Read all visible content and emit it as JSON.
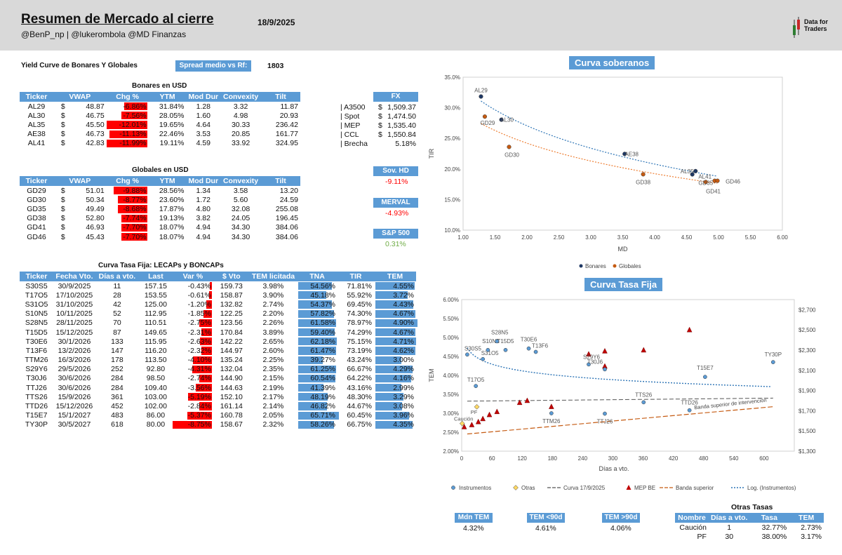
{
  "header": {
    "title": "Resumen de Mercado al cierre",
    "date": "18/9/2025",
    "subtitle": "@BenP_np | @lukerombola @MD Finanzas",
    "logo_line1": "Data for",
    "logo_line2": "Traders"
  },
  "yield_curve": {
    "label": "Yield Curve de Bonares Y Globales",
    "spread_label": "Spread medio vs Rf:",
    "spread_value": "1803"
  },
  "bonares": {
    "title": "Bonares en USD",
    "headers": [
      "Ticker",
      "VWAP",
      "Chg %",
      "YTM",
      "Mod Dur",
      "Convexity",
      "Tilt"
    ],
    "rows": [
      {
        "ticker": "AL29",
        "cur": "$",
        "vwap": "48.87",
        "chg": "-6.86%",
        "chg_v": -6.86,
        "ytm": "31.84%",
        "dur": "1.28",
        "conv": "3.32",
        "tilt": "11.87"
      },
      {
        "ticker": "AL30",
        "cur": "$",
        "vwap": "46.75",
        "chg": "-7.56%",
        "chg_v": -7.56,
        "ytm": "28.05%",
        "dur": "1.60",
        "conv": "4.98",
        "tilt": "20.93"
      },
      {
        "ticker": "AL35",
        "cur": "$",
        "vwap": "45.50",
        "chg": "-12.01%",
        "chg_v": -12.01,
        "ytm": "19.65%",
        "dur": "4.64",
        "conv": "30.33",
        "tilt": "236.42"
      },
      {
        "ticker": "AE38",
        "cur": "$",
        "vwap": "46.73",
        "chg": "-11.13%",
        "chg_v": -11.13,
        "ytm": "22.46%",
        "dur": "3.53",
        "conv": "20.85",
        "tilt": "161.77"
      },
      {
        "ticker": "AL41",
        "cur": "$",
        "vwap": "42.83",
        "chg": "-11.99%",
        "chg_v": -11.99,
        "ytm": "19.11%",
        "dur": "4.59",
        "conv": "33.92",
        "tilt": "324.95"
      }
    ]
  },
  "fx": {
    "title": "FX",
    "rows": [
      {
        "name": "| A3500",
        "cur": "$",
        "value": "1,509.37"
      },
      {
        "name": "| Spot",
        "cur": "$",
        "value": "1,474.50"
      },
      {
        "name": "| MEP",
        "cur": "$",
        "value": "1,535.40"
      },
      {
        "name": "| CCL",
        "cur": "$",
        "value": "1,550.84"
      },
      {
        "name": "| Brecha",
        "cur": "",
        "value": "5.18%"
      }
    ]
  },
  "globales": {
    "title": "Globales en USD",
    "headers": [
      "Ticker",
      "VWAP",
      "Chg %",
      "YTM",
      "Mod Dur",
      "Convexity",
      "Tilt"
    ],
    "rows": [
      {
        "ticker": "GD29",
        "cur": "$",
        "vwap": "51.01",
        "chg": "-9.88%",
        "chg_v": -9.88,
        "ytm": "28.56%",
        "dur": "1.34",
        "conv": "3.58",
        "tilt": "13.20"
      },
      {
        "ticker": "GD30",
        "cur": "$",
        "vwap": "50.34",
        "chg": "-8.77%",
        "chg_v": -8.77,
        "ytm": "23.60%",
        "dur": "1.72",
        "conv": "5.60",
        "tilt": "24.59"
      },
      {
        "ticker": "GD35",
        "cur": "$",
        "vwap": "49.49",
        "chg": "-8.68%",
        "chg_v": -8.68,
        "ytm": "17.87%",
        "dur": "4.80",
        "conv": "32.08",
        "tilt": "255.08"
      },
      {
        "ticker": "GD38",
        "cur": "$",
        "vwap": "52.80",
        "chg": "-7.74%",
        "chg_v": -7.74,
        "ytm": "19.13%",
        "dur": "3.82",
        "conv": "24.05",
        "tilt": "196.45"
      },
      {
        "ticker": "GD41",
        "cur": "$",
        "vwap": "46.93",
        "chg": "-7.70%",
        "chg_v": -7.7,
        "ytm": "18.07%",
        "dur": "4.94",
        "conv": "34.30",
        "tilt": "384.06"
      },
      {
        "ticker": "GD46",
        "cur": "$",
        "vwap": "45.43",
        "chg": "-7.70%",
        "chg_v": -7.7,
        "ytm": "18.07%",
        "dur": "4.94",
        "conv": "34.30",
        "tilt": "384.06"
      }
    ]
  },
  "indices": [
    {
      "name": "Sov. HD",
      "value": "-9.11%",
      "sign": "neg"
    },
    {
      "name": "MERVAL",
      "value": "-4.93%",
      "sign": "neg"
    },
    {
      "name": "S&P 500",
      "value": "0.31%",
      "sign": "pos"
    }
  ],
  "tasa_fija": {
    "title": "Curva Tasa Fija: LECAPs y BONCAPs",
    "headers": [
      "Ticker",
      "Fecha Vto.",
      "Días a vto.",
      "Last",
      "Var %",
      "$ Vto",
      "TEM licitada",
      "TNA",
      "TIR",
      "TEM"
    ],
    "rows": [
      {
        "ticker": "S30S5",
        "fecha": "30/9/2025",
        "dias": "11",
        "last": "157.15",
        "var": "-0.43%",
        "var_v": -0.43,
        "vto": "159.73",
        "teml": "3.98%",
        "tna": "54.56%",
        "tna_v": 54.56,
        "tir": "71.81%",
        "tem": "4.55%",
        "tem_v": 4.55
      },
      {
        "ticker": "T17O5",
        "fecha": "17/10/2025",
        "dias": "28",
        "last": "153.55",
        "var": "-0.61%",
        "var_v": -0.61,
        "vto": "158.87",
        "teml": "3.90%",
        "tna": "45.18%",
        "tna_v": 45.18,
        "tir": "55.92%",
        "tem": "3.72%",
        "tem_v": 3.72
      },
      {
        "ticker": "S31O5",
        "fecha": "31/10/2025",
        "dias": "42",
        "last": "125.00",
        "var": "-1.20%",
        "var_v": -1.2,
        "vto": "132.82",
        "teml": "2.74%",
        "tna": "54.37%",
        "tna_v": 54.37,
        "tir": "69.45%",
        "tem": "4.43%",
        "tem_v": 4.43
      },
      {
        "ticker": "S10N5",
        "fecha": "10/11/2025",
        "dias": "52",
        "last": "112.95",
        "var": "-1.85%",
        "var_v": -1.85,
        "vto": "122.25",
        "teml": "2.20%",
        "tna": "57.82%",
        "tna_v": 57.82,
        "tir": "74.30%",
        "tem": "4.67%",
        "tem_v": 4.67
      },
      {
        "ticker": "S28N5",
        "fecha": "28/11/2025",
        "dias": "70",
        "last": "110.51",
        "var": "-2.75%",
        "var_v": -2.75,
        "vto": "123.56",
        "teml": "2.26%",
        "tna": "61.58%",
        "tna_v": 61.58,
        "tir": "78.97%",
        "tem": "4.90%",
        "tem_v": 4.9
      },
      {
        "ticker": "T15D5",
        "fecha": "15/12/2025",
        "dias": "87",
        "last": "149.65",
        "var": "-2.31%",
        "var_v": -2.31,
        "vto": "170.84",
        "teml": "3.89%",
        "tna": "59.40%",
        "tna_v": 59.4,
        "tir": "74.29%",
        "tem": "4.67%",
        "tem_v": 4.67
      },
      {
        "ticker": "T30E6",
        "fecha": "30/1/2026",
        "dias": "133",
        "last": "115.95",
        "var": "-2.63%",
        "var_v": -2.63,
        "vto": "142.22",
        "teml": "2.65%",
        "tna": "62.18%",
        "tna_v": 62.18,
        "tir": "75.15%",
        "tem": "4.71%",
        "tem_v": 4.71
      },
      {
        "ticker": "T13F6",
        "fecha": "13/2/2026",
        "dias": "147",
        "last": "116.20",
        "var": "-2.32%",
        "var_v": -2.32,
        "vto": "144.97",
        "teml": "2.60%",
        "tna": "61.47%",
        "tna_v": 61.47,
        "tir": "73.19%",
        "tem": "4.62%",
        "tem_v": 4.62
      },
      {
        "ticker": "TTM26",
        "fecha": "16/3/2026",
        "dias": "178",
        "last": "113.50",
        "var": "-4.10%",
        "var_v": -4.1,
        "vto": "135.24",
        "teml": "2.25%",
        "tna": "39.27%",
        "tna_v": 39.27,
        "tir": "43.24%",
        "tem": "3.00%",
        "tem_v": 3.0
      },
      {
        "ticker": "S29Y6",
        "fecha": "29/5/2026",
        "dias": "252",
        "last": "92.80",
        "var": "-4.31%",
        "var_v": -4.31,
        "vto": "132.04",
        "teml": "2.35%",
        "tna": "61.25%",
        "tna_v": 61.25,
        "tir": "66.67%",
        "tem": "4.29%",
        "tem_v": 4.29
      },
      {
        "ticker": "T30J6",
        "fecha": "30/6/2026",
        "dias": "284",
        "last": "98.50",
        "var": "-2.74%",
        "var_v": -2.74,
        "vto": "144.90",
        "teml": "2.15%",
        "tna": "60.54%",
        "tna_v": 60.54,
        "tir": "64.22%",
        "tem": "4.16%",
        "tem_v": 4.16
      },
      {
        "ticker": "TTJ26",
        "fecha": "30/6/2026",
        "dias": "284",
        "last": "109.40",
        "var": "-3.56%",
        "var_v": -3.56,
        "vto": "144.63",
        "teml": "2.19%",
        "tna": "41.39%",
        "tna_v": 41.39,
        "tir": "43.16%",
        "tem": "2.99%",
        "tem_v": 2.99
      },
      {
        "ticker": "TTS26",
        "fecha": "15/9/2026",
        "dias": "361",
        "last": "103.00",
        "var": "-5.19%",
        "var_v": -5.19,
        "vto": "152.10",
        "teml": "2.17%",
        "tna": "48.19%",
        "tna_v": 48.19,
        "tir": "48.30%",
        "tem": "3.29%",
        "tem_v": 3.29
      },
      {
        "ticker": "TTD26",
        "fecha": "15/12/2026",
        "dias": "452",
        "last": "102.00",
        "var": "-2.84%",
        "var_v": -2.84,
        "vto": "161.14",
        "teml": "2.14%",
        "tna": "46.82%",
        "tna_v": 46.82,
        "tir": "44.67%",
        "tem": "3.08%",
        "tem_v": 3.08
      },
      {
        "ticker": "T15E7",
        "fecha": "15/1/2027",
        "dias": "483",
        "last": "86.00",
        "var": "-5.37%",
        "var_v": -5.37,
        "vto": "160.78",
        "teml": "2.05%",
        "tna": "65.71%",
        "tna_v": 65.71,
        "tir": "60.45%",
        "tem": "3.96%",
        "tem_v": 3.96
      },
      {
        "ticker": "TY30P",
        "fecha": "30/5/2027",
        "dias": "618",
        "last": "80.00",
        "var": "-8.75%",
        "var_v": -8.75,
        "vto": "158.67",
        "teml": "2.32%",
        "tna": "58.26%",
        "tna_v": 58.26,
        "tir": "66.75%",
        "tem": "4.35%",
        "tem_v": 4.35
      }
    ]
  },
  "chart_data": [
    {
      "type": "scatter",
      "title": "Curva soberanos",
      "xlabel": "MD",
      "ylabel": "TIR",
      "xlim": [
        1.0,
        6.0
      ],
      "ylim": [
        10,
        35
      ],
      "xticks": [
        "1.00",
        "1.50",
        "2.00",
        "2.50",
        "3.00",
        "3.50",
        "4.00",
        "4.50",
        "5.00",
        "5.50",
        "6.00"
      ],
      "yticks": [
        "10.0%",
        "15.0%",
        "20.0%",
        "25.0%",
        "30.0%",
        "35.0%"
      ],
      "legend": [
        "Bonares",
        "Globales"
      ],
      "legend_position": "bottom",
      "series": [
        {
          "name": "Bonares",
          "color": "#1f3864",
          "points": [
            {
              "label": "AL29",
              "x": 1.28,
              "y": 31.84
            },
            {
              "label": "AL30",
              "x": 1.6,
              "y": 28.05
            },
            {
              "label": "AE38",
              "x": 3.53,
              "y": 22.46
            },
            {
              "label": "AL35",
              "x": 4.64,
              "y": 19.65
            },
            {
              "label": "AL41",
              "x": 4.59,
              "y": 19.11
            }
          ]
        },
        {
          "name": "Globales",
          "color": "#c55a11",
          "points": [
            {
              "label": "GD29",
              "x": 1.34,
              "y": 28.56
            },
            {
              "label": "GD30",
              "x": 1.72,
              "y": 23.6
            },
            {
              "label": "GD38",
              "x": 3.82,
              "y": 19.13
            },
            {
              "label": "GD35",
              "x": 4.8,
              "y": 17.87
            },
            {
              "label": "GD41",
              "x": 4.94,
              "y": 18.07
            },
            {
              "label": "GD46",
              "x": 4.94,
              "y": 18.07
            }
          ]
        }
      ]
    },
    {
      "type": "scatter",
      "title": "Curva Tasa Fija",
      "xlabel": "Días a vto.",
      "ylabel": "TEM",
      "xlim": [
        0,
        660
      ],
      "ylim": [
        2.0,
        6.0
      ],
      "y2lim": [
        1300,
        2800
      ],
      "xticks": [
        "0",
        "60",
        "120",
        "180",
        "240",
        "300",
        "360",
        "420",
        "480",
        "540",
        "600"
      ],
      "yticks": [
        "2.00%",
        "2.50%",
        "3.00%",
        "3.50%",
        "4.00%",
        "4.50%",
        "5.00%",
        "5.50%",
        "6.00%"
      ],
      "y2ticks": [
        "$1,300",
        "$1,500",
        "$1,700",
        "$1,900",
        "$2,100",
        "$2,300",
        "$2,500",
        "$2,700"
      ],
      "annotation": "Banda superior de intervención",
      "legend": [
        "Instrumentos",
        "Otras",
        "Curva 17/9/2025",
        "MEP BE",
        "Banda superior",
        "Log. (Instrumentos)"
      ],
      "legend_position": "bottom",
      "instrumentos": [
        {
          "label": "S30S5",
          "x": 11,
          "y": 4.55
        },
        {
          "label": "T17O5",
          "x": 28,
          "y": 3.72
        },
        {
          "label": "S31O5",
          "x": 42,
          "y": 4.43
        },
        {
          "label": "S10N5",
          "x": 52,
          "y": 4.67
        },
        {
          "label": "S28N5",
          "x": 70,
          "y": 4.9
        },
        {
          "label": "T15D5",
          "x": 87,
          "y": 4.67
        },
        {
          "label": "T30E6",
          "x": 133,
          "y": 4.71
        },
        {
          "label": "T13F6",
          "x": 147,
          "y": 4.62
        },
        {
          "label": "TTM26",
          "x": 178,
          "y": 3.0
        },
        {
          "label": "S29Y6",
          "x": 252,
          "y": 4.29
        },
        {
          "label": "T30J6",
          "x": 284,
          "y": 4.16
        },
        {
          "label": "TTJ26",
          "x": 284,
          "y": 2.99
        },
        {
          "label": "TTS26",
          "x": 361,
          "y": 3.29
        },
        {
          "label": "TTD26",
          "x": 452,
          "y": 3.08
        },
        {
          "label": "T15E7",
          "x": 483,
          "y": 3.96
        },
        {
          "label": "TY30P",
          "x": 618,
          "y": 4.35
        }
      ],
      "otras": [
        {
          "label": "Caución",
          "x": 1,
          "y": 2.73
        },
        {
          "label": "PF",
          "x": 30,
          "y": 3.17
        }
      ],
      "mep_be": [
        {
          "x": 5,
          "y": 1540
        },
        {
          "x": 20,
          "y": 1560
        },
        {
          "x": 33,
          "y": 1590
        },
        {
          "x": 42,
          "y": 1620
        },
        {
          "x": 55,
          "y": 1660
        },
        {
          "x": 70,
          "y": 1690
        },
        {
          "x": 115,
          "y": 1780
        },
        {
          "x": 130,
          "y": 1800
        },
        {
          "x": 178,
          "y": 1740
        },
        {
          "x": 252,
          "y": 2260
        },
        {
          "x": 284,
          "y": 2290
        },
        {
          "x": 284,
          "y": 2140
        },
        {
          "x": 361,
          "y": 2300
        },
        {
          "x": 452,
          "y": 2500
        }
      ],
      "curva_prev": [
        {
          "x": 11,
          "y": 3.32
        },
        {
          "x": 618,
          "y": 3.4
        }
      ],
      "banda_superior": [
        {
          "x": 11,
          "y": 1470
        },
        {
          "x": 618,
          "y": 1740
        }
      ]
    }
  ],
  "summary": {
    "mdn_label": "Mdn TEM",
    "mdn_value": "4.32%",
    "lt90_label": "TEM <90d",
    "lt90_value": "4.61%",
    "gt90_label": "TEM >90d",
    "gt90_value": "4.06%"
  },
  "otras_tasas": {
    "title": "Otras Tasas",
    "headers": [
      "Nombre",
      "Días a vto.",
      "Tasa",
      "TEM"
    ],
    "rows": [
      {
        "nombre": "Caución",
        "dias": "1",
        "tasa": "32.77%",
        "tem": "2.73%"
      },
      {
        "nombre": "PF",
        "dias": "30",
        "tasa": "38.00%",
        "tem": "3.17%"
      }
    ]
  }
}
